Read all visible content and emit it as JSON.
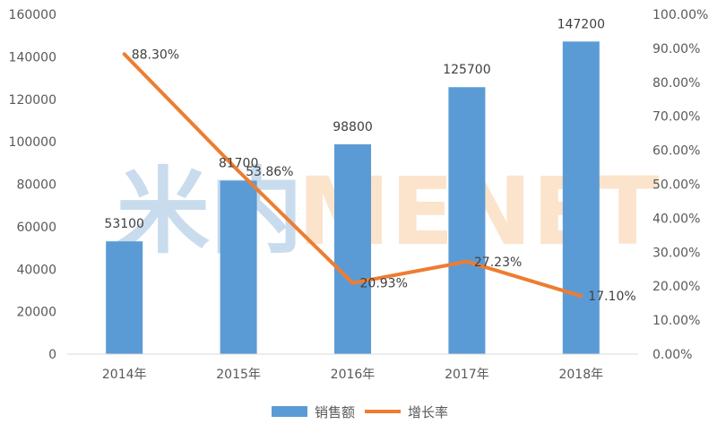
{
  "watermark": {
    "prefix": "米内",
    "text": "MENET",
    "colors": [
      "#c8dced",
      "#fbe3cc"
    ]
  },
  "chart_data": {
    "type": "bar",
    "categories": [
      "2014年",
      "2015年",
      "2016年",
      "2017年",
      "2018年"
    ],
    "series": [
      {
        "name": "销售额",
        "type": "bar",
        "axis": "left",
        "color": "#5b9bd5",
        "values": [
          53100,
          81700,
          98800,
          125700,
          147200
        ],
        "labels": [
          "53100",
          "81700",
          "98800",
          "125700",
          "147200"
        ]
      },
      {
        "name": "增长率",
        "type": "line",
        "axis": "right",
        "color": "#ed7d31",
        "values": [
          88.3,
          53.86,
          20.93,
          27.23,
          17.1
        ],
        "labels": [
          "88.30%",
          "53.86%",
          "20.93%",
          "27.23%",
          "17.10%"
        ]
      }
    ],
    "y_left": {
      "min": 0,
      "max": 160000,
      "step": 20000,
      "ticks": [
        "0",
        "20000",
        "40000",
        "60000",
        "80000",
        "100000",
        "120000",
        "140000",
        "160000"
      ]
    },
    "y_right": {
      "min": 0,
      "max": 100,
      "step": 10,
      "ticks": [
        "0.00%",
        "10.00%",
        "20.00%",
        "30.00%",
        "40.00%",
        "50.00%",
        "60.00%",
        "70.00%",
        "80.00%",
        "90.00%",
        "100.00%"
      ]
    },
    "title": "",
    "xlabel": "",
    "ylabel": "",
    "grid": false,
    "legend": "bottom"
  }
}
